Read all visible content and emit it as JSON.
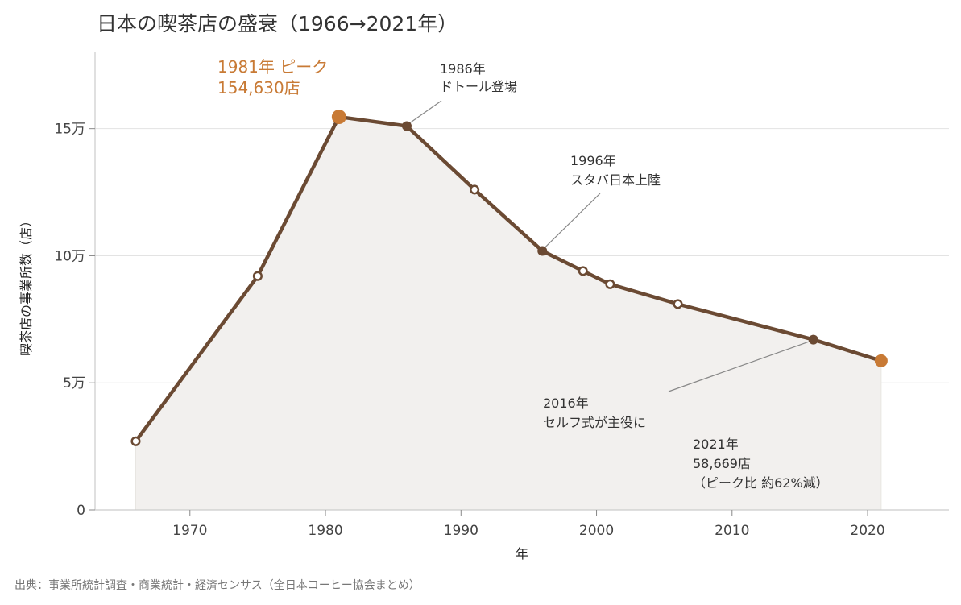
{
  "title": "日本の喫茶店の盛衰（1966→2021年）",
  "source": "出典：事業所統計調査・商業統計・経済センサス（全日本コーヒー協会まとめ）",
  "chart_data": {
    "type": "line",
    "x": [
      1966,
      1975,
      1981,
      1986,
      1991,
      1996,
      1999,
      2001,
      2006,
      2016,
      2021
    ],
    "series": [
      {
        "values": [
          27000,
          92000,
          154630,
          151000,
          126000,
          101900,
          94000,
          88800,
          81000,
          67000,
          58669
        ]
      }
    ],
    "xlabel": "年",
    "ylabel": "喫茶店の事業所数（店）",
    "xlim": [
      1963,
      2026
    ],
    "ylim": [
      0,
      180000
    ],
    "x_ticks": [
      "1970",
      "1980",
      "1990",
      "2000",
      "2010",
      "2020"
    ],
    "y_ticks": [
      "0",
      "5万",
      "10万",
      "15万"
    ],
    "grid": "horizontal",
    "colors": {
      "line": "#6b4a33",
      "accent": "#c87a35",
      "fill": "#f2f0ee",
      "grid": "#e3e3e3"
    },
    "annotations": {
      "peak": [
        "1981年 ピーク",
        "154,630店"
      ],
      "doutor": [
        "1986年",
        "ドトール登場"
      ],
      "starbucks": [
        "1996年",
        "スタバ日本上陸"
      ],
      "self_service": [
        "2016年",
        "セルフ式が主役に"
      ],
      "latest": [
        "2021年",
        "58,669店",
        "（ピーク比 約62%減）"
      ]
    }
  }
}
